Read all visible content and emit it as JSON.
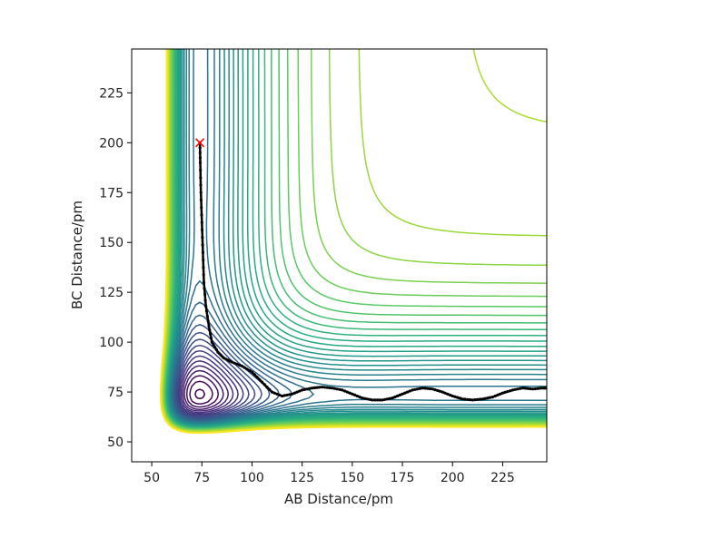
{
  "chart_data": {
    "type": "contour",
    "title": "",
    "xlabel": "AB Distance/pm",
    "ylabel": "BC Distance/pm",
    "xlim": [
      40,
      247
    ],
    "ylim": [
      40,
      247
    ],
    "x_ticks": [
      50,
      75,
      100,
      125,
      150,
      175,
      200,
      225
    ],
    "y_ticks": [
      50,
      75,
      100,
      125,
      150,
      175,
      200,
      225
    ],
    "grid": false,
    "legend": "none",
    "colormap": "viridis",
    "colormap_stops": [
      "#440154",
      "#472d7b",
      "#3b528b",
      "#2c728e",
      "#21918c",
      "#28ae80",
      "#5ec962",
      "#addc30",
      "#fde725"
    ],
    "contour_count": 40,
    "surface": {
      "type": "LEPS-like",
      "reactant_valley_x": 74,
      "product_valley_y": 74
    },
    "start_point": {
      "x": 74,
      "y": 200,
      "marker": "x",
      "color": "#ff0000"
    },
    "trajectory": {
      "color": "#000000",
      "x": [
        74,
        74.2,
        74.5,
        75,
        75.5,
        76,
        77,
        78.5,
        80,
        83,
        86,
        90,
        95,
        100,
        105,
        110,
        115,
        120,
        125,
        130,
        135,
        140,
        145,
        150,
        155,
        160,
        165,
        170,
        175,
        180,
        185,
        190,
        195,
        200,
        205,
        210,
        215,
        220,
        225,
        230,
        235,
        240,
        245,
        247
      ],
      "y": [
        200,
        190,
        175,
        160,
        145,
        130,
        118,
        108,
        100,
        95,
        92,
        90,
        88,
        85,
        80,
        75,
        73,
        74,
        76,
        77,
        77.5,
        77,
        76,
        74,
        72,
        71,
        71,
        72,
        74,
        76,
        77,
        76.5,
        75,
        73,
        71.5,
        71,
        71.5,
        72.5,
        74.5,
        76,
        77,
        76.5,
        77,
        77
      ]
    }
  }
}
